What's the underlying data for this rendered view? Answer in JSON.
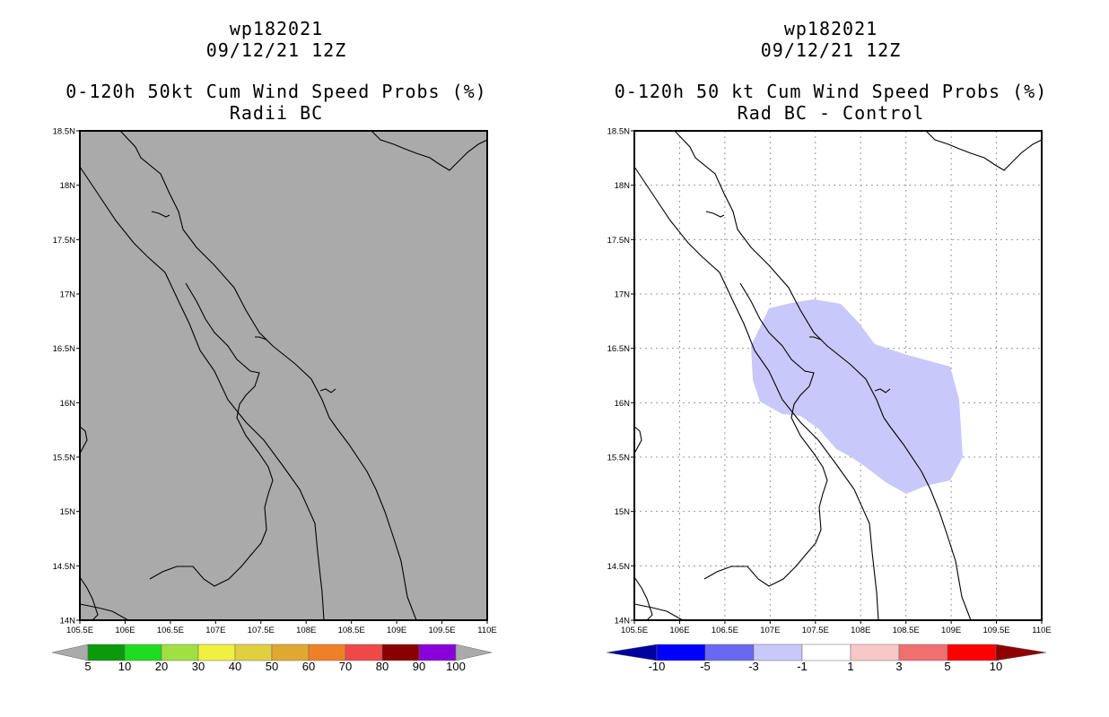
{
  "left_panel": {
    "title_lines": [
      "wp182021",
      "09/12/21 12Z",
      "0-120h 50kt Cum Wind Speed Probs (%)",
      "Radii BC"
    ],
    "background_color": "#aaaaaa",
    "lat_labels": [
      "18.5N",
      "18N",
      "17.5N",
      "17N",
      "16.5N",
      "16N",
      "15.5N",
      "15N",
      "14.5N",
      "14N"
    ],
    "lon_labels": [
      "105.5E",
      "106E",
      "106.5E",
      "107E",
      "107.5E",
      "108E",
      "108.5E",
      "109E",
      "109.5E",
      "110E"
    ],
    "colorbar": {
      "labels": [
        "5",
        "10",
        "20",
        "30",
        "40",
        "50",
        "60",
        "70",
        "80",
        "90",
        "100"
      ],
      "colors": [
        "#aaaaaa",
        "#0a9a0a",
        "#20dc20",
        "#a0e040",
        "#f0f040",
        "#e0d040",
        "#e0a830",
        "#f08028",
        "#f04848",
        "#8a0000",
        "#8a00d8",
        "#aaaaaa"
      ]
    }
  },
  "right_panel": {
    "title_lines": [
      "wp182021",
      "09/12/21 12Z",
      "0-120h 50 kt Cum Wind Speed Probs (%)",
      "Rad BC - Control"
    ],
    "background_color": "#ffffff",
    "shaded_region_color": "#c8c8fa",
    "lat_labels": [
      "18.5N",
      "18N",
      "17.5N",
      "17N",
      "16.5N",
      "16N",
      "15.5N",
      "15N",
      "14.5N",
      "14N"
    ],
    "lon_labels": [
      "105.5E",
      "106E",
      "106.5E",
      "107E",
      "107.5E",
      "108E",
      "108.5E",
      "109E",
      "109.5E",
      "110E"
    ],
    "colorbar": {
      "labels": [
        "-10",
        "-5",
        "-3",
        "-1",
        "1",
        "3",
        "5",
        "10"
      ],
      "colors": [
        "#0000a0",
        "#0000ff",
        "#6868f0",
        "#c8c8fa",
        "#ffffff",
        "#f8c8c8",
        "#f07070",
        "#ff0000",
        "#900000"
      ]
    }
  }
}
